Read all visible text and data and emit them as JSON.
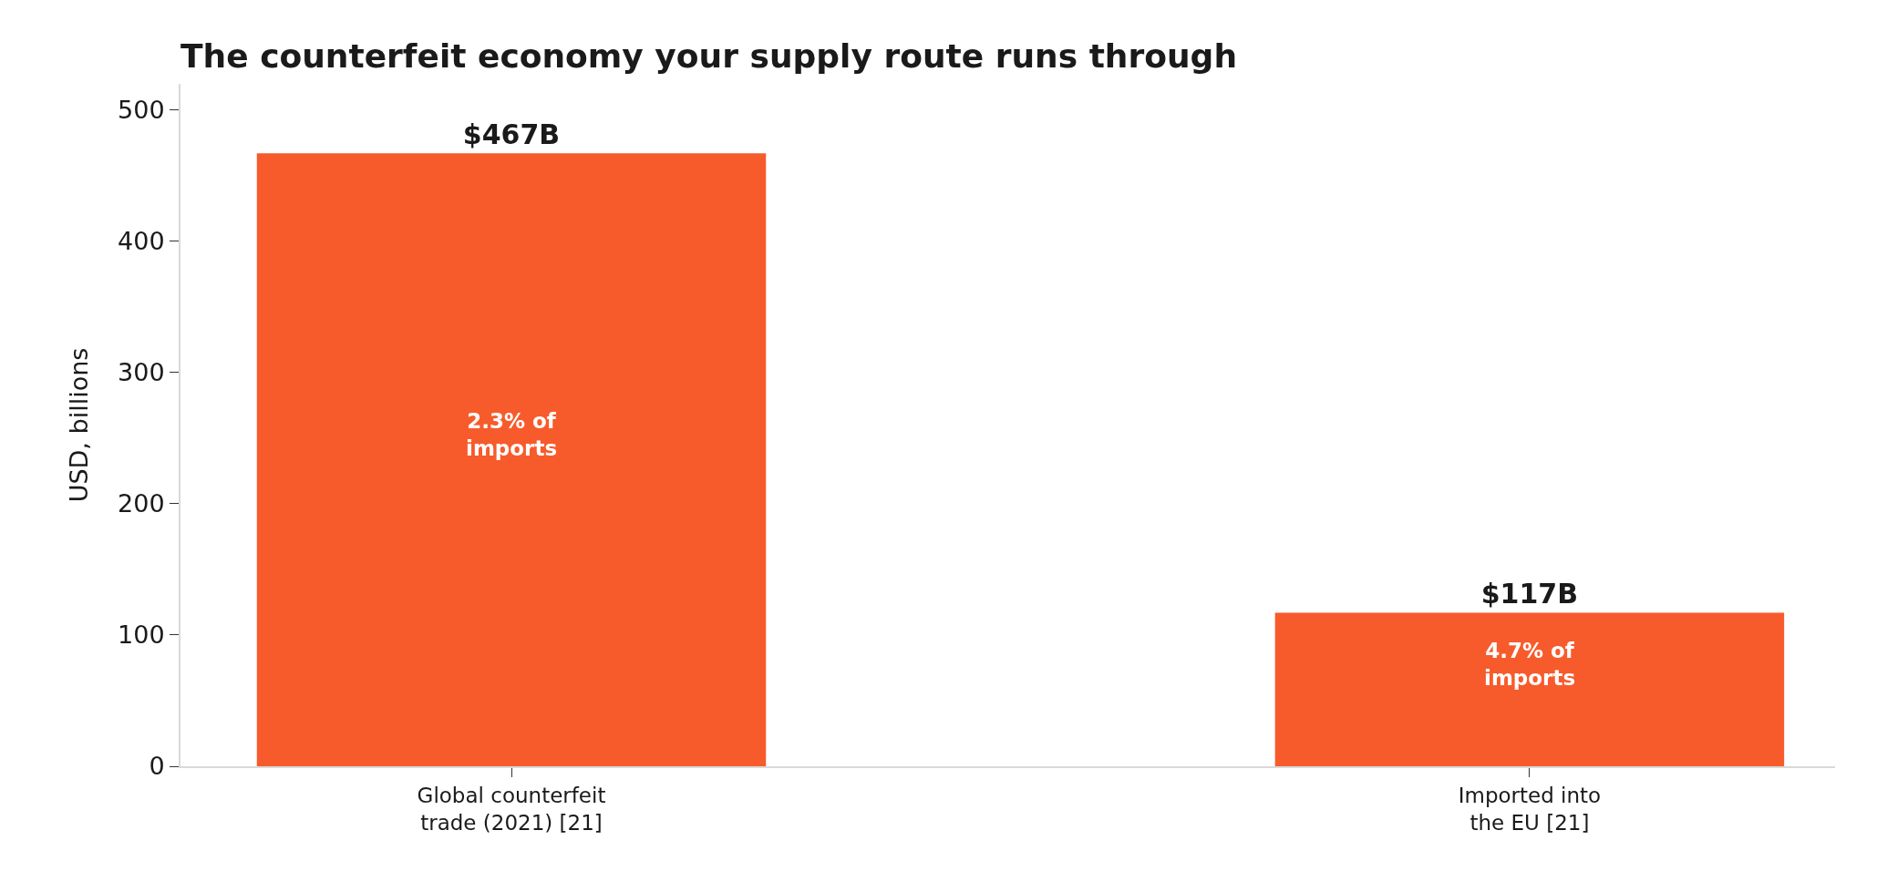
{
  "chart_data": {
    "type": "bar",
    "title": "The counterfeit economy your supply route runs through",
    "ylabel": "USD, billions",
    "categories": [
      "Global counterfeit\ntrade (2021) [21]",
      "Imported into\nthe EU [21]"
    ],
    "values": [
      467,
      117
    ],
    "color": "#f75b2b",
    "value_labels": [
      "$467B",
      "$117B"
    ],
    "annotations": [
      "2.3% of\nimports",
      "4.7% of\nimports"
    ],
    "ylim": [
      0,
      520
    ],
    "yticks": [
      0,
      100,
      200,
      300,
      400,
      500
    ],
    "legend": false
  }
}
